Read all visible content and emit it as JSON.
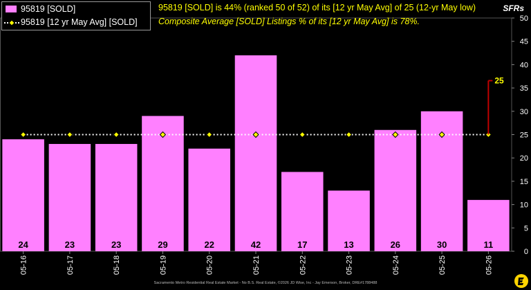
{
  "legend": {
    "sold_label": "95819 [SOLD]",
    "avg_label": "95819 [12 yr May Avg] [SOLD]"
  },
  "headline": "95819 [SOLD] is 44% (ranked 50 of 52) of its [12 yr May Avg] of 25 (12-yr May low)",
  "subline": "Composite Average [SOLD] Listings % of its [12 yr May Avg] is 78%.",
  "unit_label": "SFRs",
  "footer": "Sacramento Metro Residential Real Estate Market - No B.S. Real Estate, ©2026 JD Wise, Inc - Jay Emerson, Broker, DRE#1788488",
  "colors": {
    "bar": "#ff80ff",
    "avg_line": "#ffffff",
    "avg_marker": "#ffff00",
    "callout": "#c00000",
    "callout_text": "#ffff00",
    "axis_text": "#ffffff"
  },
  "chart_data": {
    "type": "bar",
    "categories": [
      "05-16",
      "05-17",
      "05-18",
      "05-19",
      "05-20",
      "05-21",
      "05-22",
      "05-23",
      "05-24",
      "05-25",
      "05-26"
    ],
    "series": [
      {
        "name": "95819 [SOLD]",
        "type": "bar",
        "values": [
          24,
          23,
          23,
          29,
          22,
          42,
          17,
          13,
          26,
          30,
          11
        ]
      },
      {
        "name": "95819 [12 yr May Avg] [SOLD]",
        "type": "line",
        "values": [
          25,
          25,
          25,
          25,
          25,
          25,
          25,
          25,
          25,
          25,
          25
        ]
      }
    ],
    "callout": {
      "category": "05-26",
      "value": 25,
      "label": "25"
    },
    "ylim": [
      0,
      50
    ],
    "yticks": [
      0,
      5,
      10,
      15,
      20,
      25,
      30,
      35,
      40,
      45,
      50
    ],
    "y_axis_position": "right",
    "grid": false,
    "legend_position": "top-left"
  }
}
